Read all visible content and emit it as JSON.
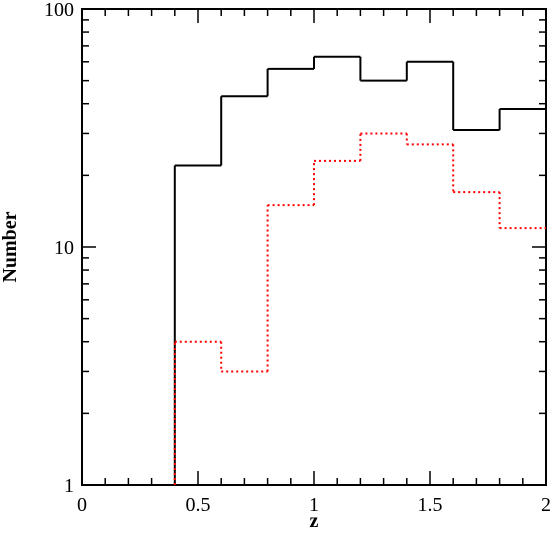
{
  "chart_data": {
    "type": "histogram",
    "x_label": "z",
    "y_label": "Number",
    "bins": [
      0.4,
      0.6,
      0.8,
      1.0,
      1.2,
      1.4,
      1.6,
      1.8,
      2.0
    ],
    "series": [
      {
        "color": "#000000",
        "line_style": "solid",
        "values": [
          22,
          43,
          56,
          63,
          50,
          60,
          31,
          38
        ]
      },
      {
        "color": "#ff0000",
        "line_style": "dotted",
        "values": [
          4,
          3,
          15,
          23,
          30,
          27,
          17,
          12
        ]
      }
    ],
    "xlim": [
      0,
      2
    ],
    "xticks": [
      0,
      0.5,
      1,
      1.5,
      2
    ],
    "xminorticks": [
      0.1,
      0.2,
      0.3,
      0.4,
      0.6,
      0.7,
      0.8,
      0.9,
      1.1,
      1.2,
      1.3,
      1.4,
      1.6,
      1.7,
      1.8,
      1.9
    ],
    "ylim": [
      1,
      100
    ],
    "yticks": [
      1,
      10,
      100
    ],
    "log_y": true,
    "yminorticks": [
      2,
      3,
      4,
      5,
      6,
      7,
      8,
      9,
      20,
      30,
      40,
      50,
      60,
      70,
      80,
      90
    ]
  }
}
